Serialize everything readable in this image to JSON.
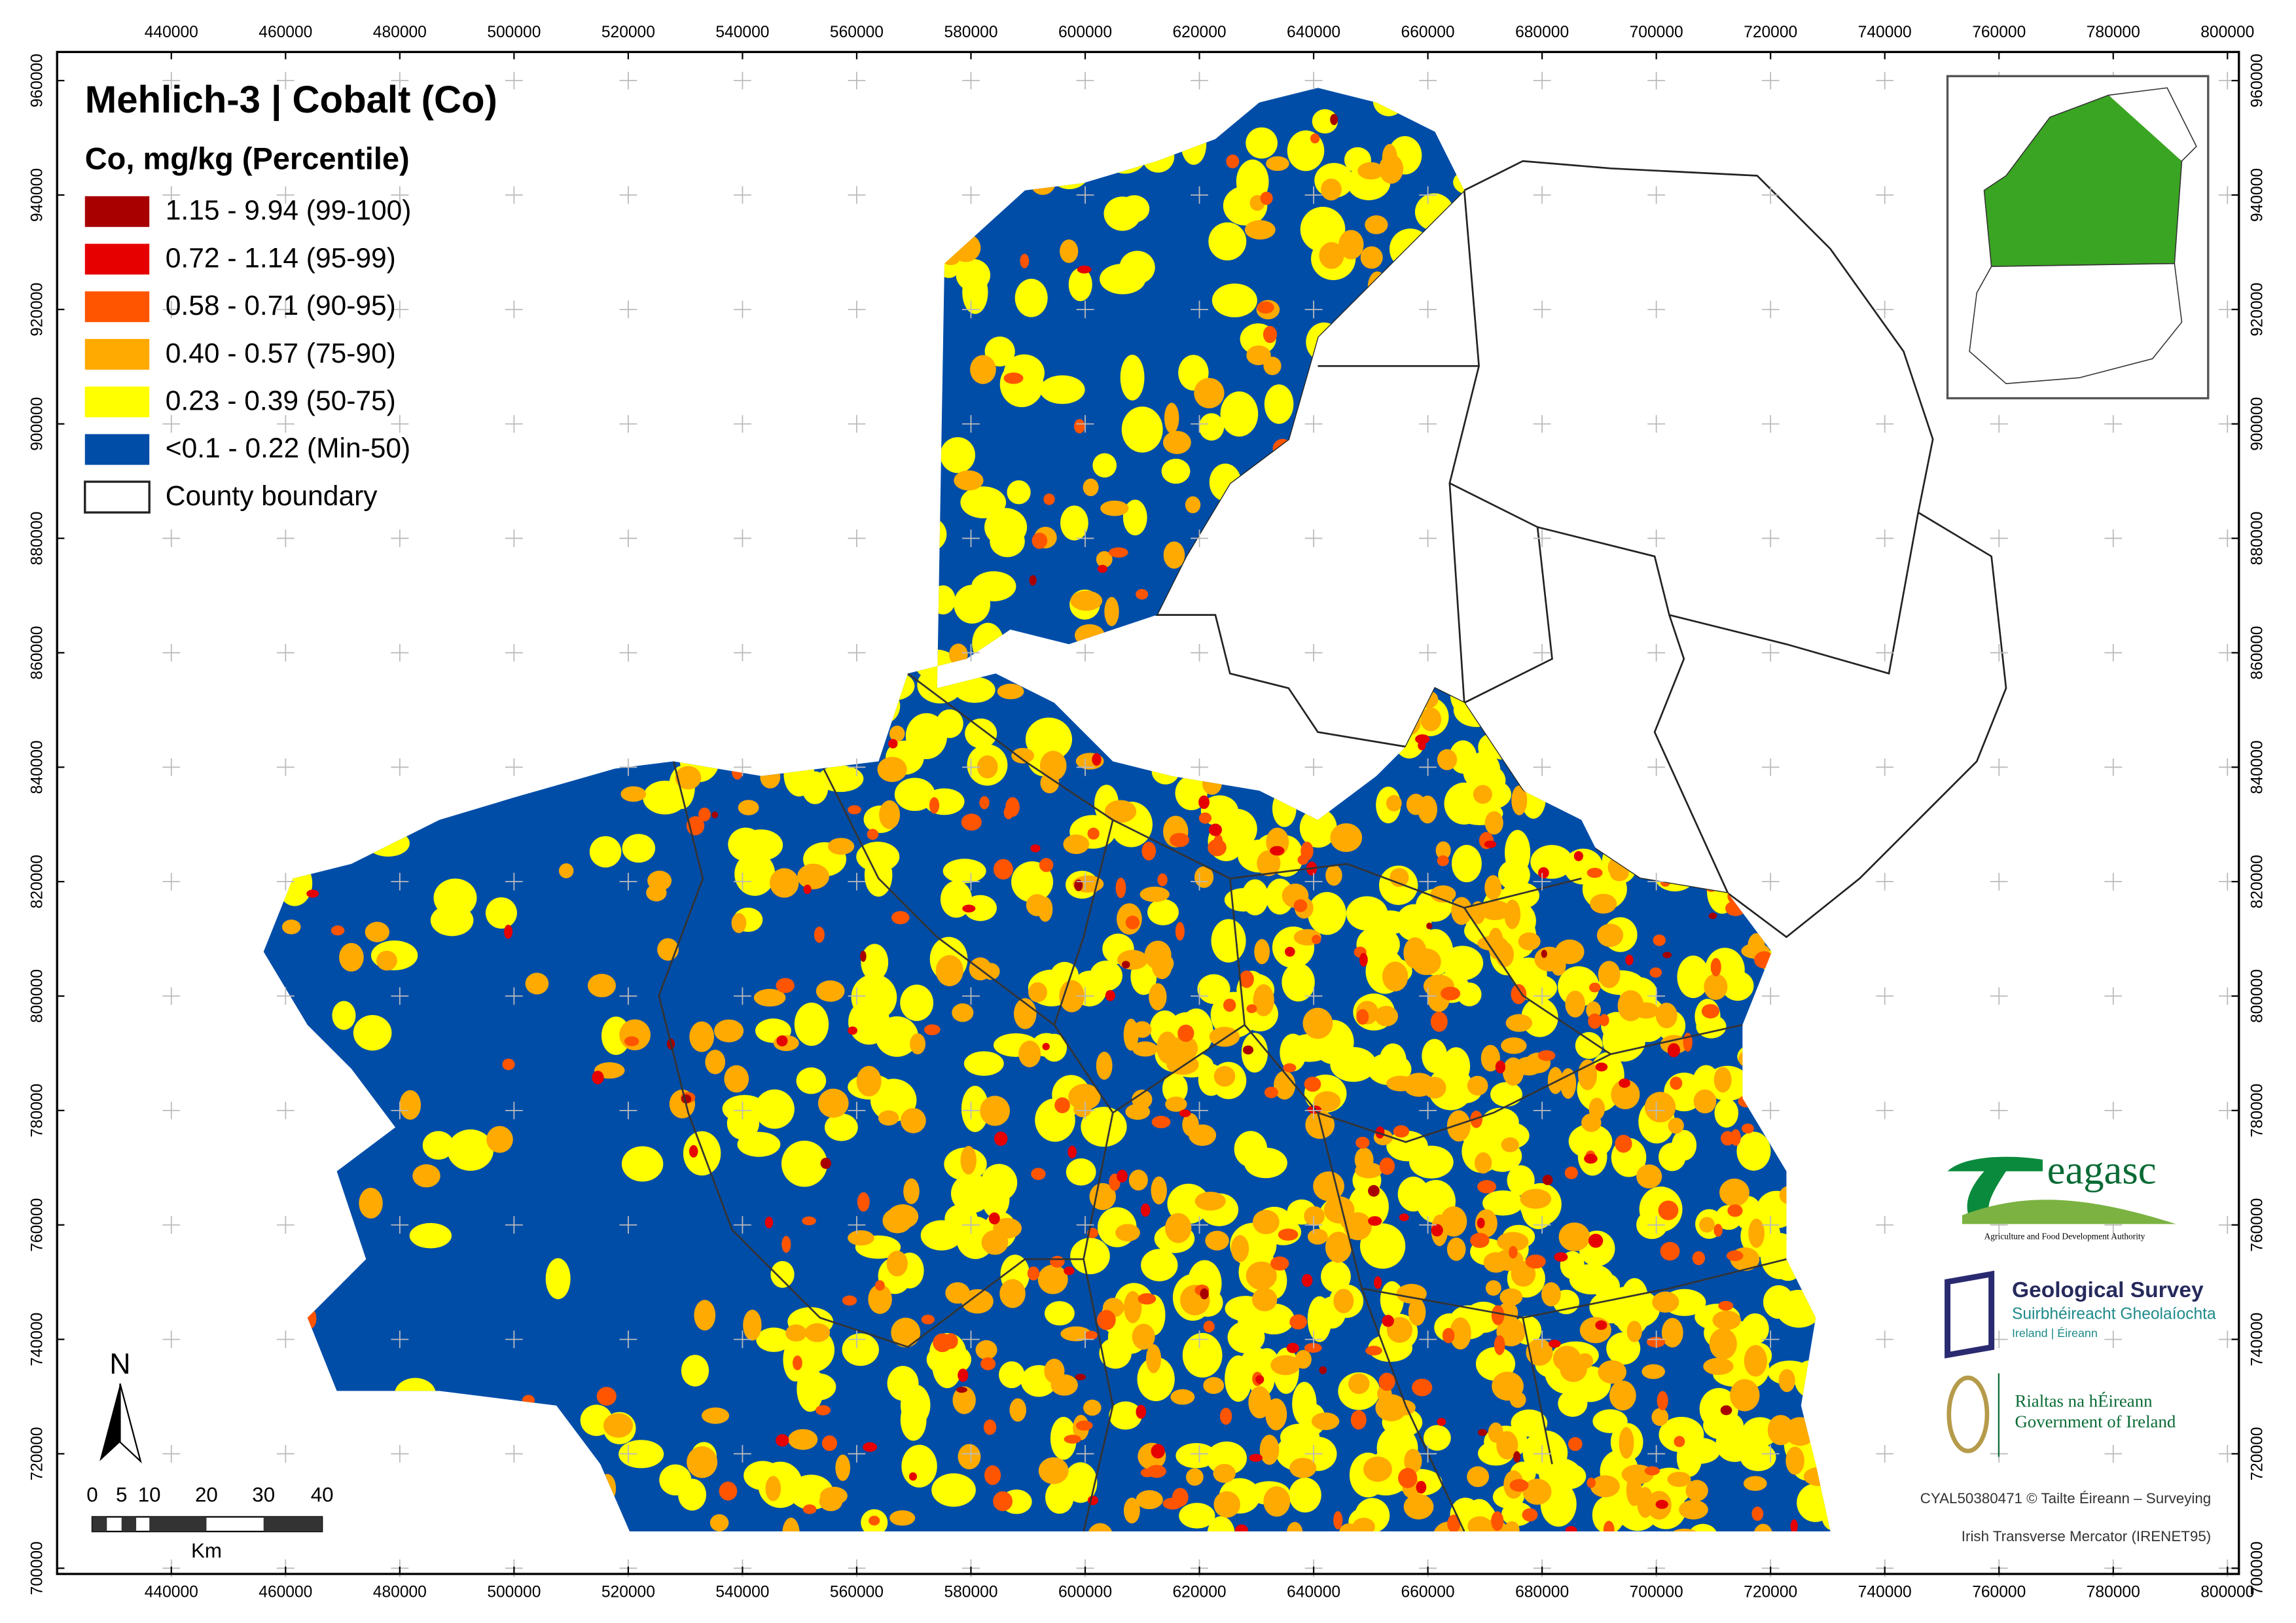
{
  "title": "Mehlich-3 | Cobalt (Co)",
  "legend": {
    "title": "Co, mg/kg (Percentile)",
    "items": [
      {
        "label": "1.15 - 9.94 (99-100)",
        "color": "#a80000"
      },
      {
        "label": "0.72 - 1.14 (95-99)",
        "color": "#e60000"
      },
      {
        "label": "0.58 - 0.71 (90-95)",
        "color": "#ff5500"
      },
      {
        "label": "0.40 - 0.57 (75-90)",
        "color": "#ffaa00"
      },
      {
        "label": "0.23 - 0.39 (50-75)",
        "color": "#ffff00"
      },
      {
        "label": "<0.1 - 0.22 (Min-50)",
        "color": "#004da8"
      },
      {
        "label": "County boundary",
        "color": "#ffffff"
      }
    ]
  },
  "grid": {
    "xlim": [
      420000,
      802000
    ],
    "ylim": [
      699000,
      965000
    ],
    "xticks": [
      440000,
      460000,
      480000,
      500000,
      520000,
      540000,
      560000,
      580000,
      600000,
      620000,
      640000,
      660000,
      680000,
      700000,
      720000,
      740000,
      760000,
      780000,
      800000
    ],
    "yticks": [
      700000,
      720000,
      740000,
      760000,
      780000,
      800000,
      820000,
      840000,
      860000,
      880000,
      900000,
      920000,
      940000,
      960000
    ]
  },
  "north_arrow": "N",
  "scale_bar": {
    "labels": [
      0,
      5,
      10,
      20,
      30,
      40
    ],
    "unit": "Km"
  },
  "logos": {
    "teagasc": "eagasc",
    "teagasc_sub": "Agriculture and Food Development Authority",
    "gsi": "Geological Survey",
    "gsi_irish": "Suirbhéireacht Gheolaíochta",
    "gsi_sub": "Ireland | Éireann",
    "gov_irish": "Rialtas na hÉireann",
    "gov_english": "Government of Ireland"
  },
  "credits": [
    "CYAL50380471 © Tailte Éireann – Surveying",
    "Irish Transverse Mercator (IRENET95)"
  ]
}
